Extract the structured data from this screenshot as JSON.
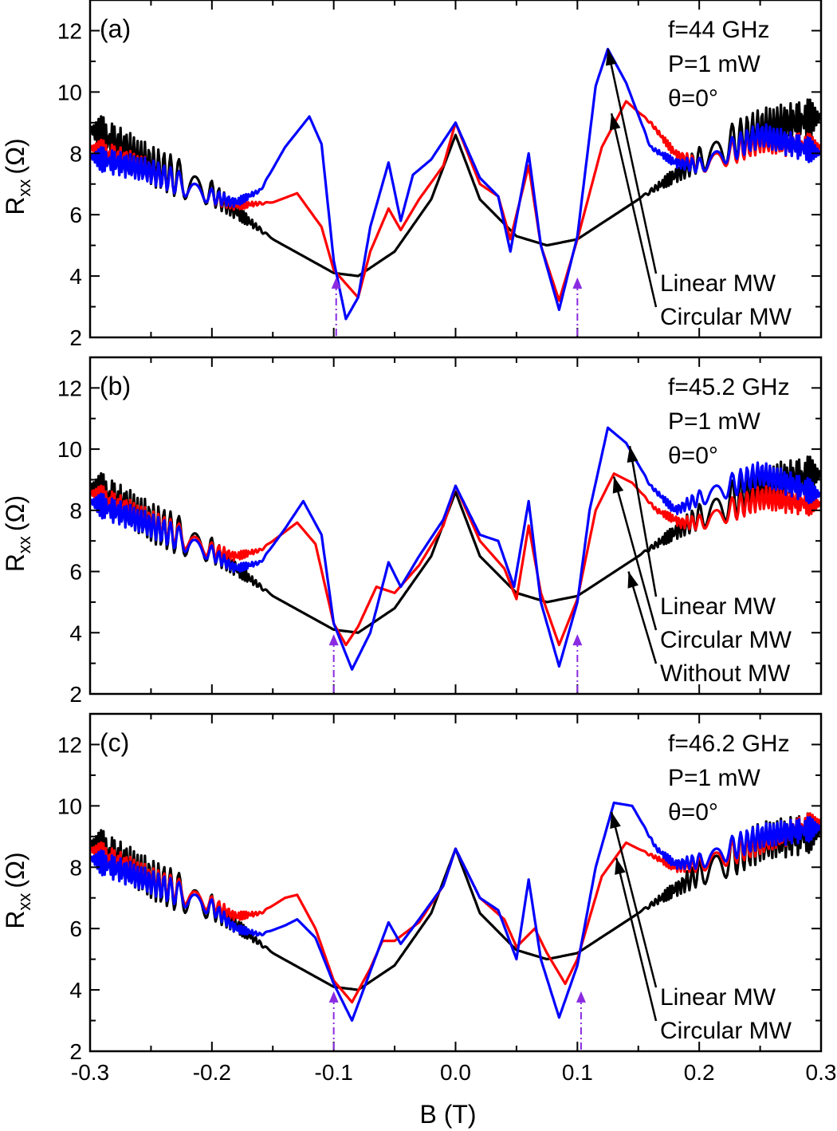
{
  "figure": {
    "xlabel": "B (T)",
    "ylabel_main": "R",
    "ylabel_sub": "xx",
    "ylabel_unit": "(Ω)"
  },
  "colors": {
    "linear": "#0000ff",
    "circular": "#ff0000",
    "without": "#000000",
    "marker": "#8a2be2"
  },
  "chart_data": [
    {
      "type": "line",
      "panel": "(a)",
      "params": {
        "f": "f=44 GHz",
        "P": "P=1 mW",
        "theta": "θ=0°"
      },
      "legend": [
        "Linear MW",
        "Circular MW"
      ],
      "xlim": [
        -0.3,
        0.3
      ],
      "ylim": [
        2,
        13
      ],
      "xticks": [
        -0.3,
        -0.2,
        -0.1,
        0.0,
        0.1,
        0.2,
        0.3
      ],
      "yticks": [
        2,
        4,
        6,
        8,
        10,
        12
      ],
      "markers_B": [
        -0.098,
        0.1
      ],
      "series": [
        {
          "name": "Without MW",
          "color": "#000000",
          "x": [
            -0.3,
            -0.25,
            -0.2,
            -0.15,
            -0.1,
            -0.08,
            -0.05,
            -0.02,
            0,
            0.02,
            0.05,
            0.075,
            0.1,
            0.15,
            0.2,
            0.25,
            0.3
          ],
          "y": [
            8.8,
            7.6,
            6.7,
            5.2,
            4.1,
            4.0,
            4.8,
            6.5,
            8.6,
            6.5,
            5.3,
            5.0,
            5.2,
            6.5,
            7.8,
            8.8,
            9.2
          ],
          "osc": 0.65
        },
        {
          "name": "Circular MW",
          "color": "#ff0000",
          "x": [
            -0.3,
            -0.25,
            -0.2,
            -0.18,
            -0.15,
            -0.13,
            -0.11,
            -0.1,
            -0.08,
            -0.07,
            -0.055,
            -0.045,
            -0.03,
            -0.01,
            0,
            0.02,
            0.035,
            0.045,
            0.06,
            0.07,
            0.085,
            0.1,
            0.12,
            0.14,
            0.16,
            0.18,
            0.2,
            0.25,
            0.3
          ],
          "y": [
            8.2,
            7.4,
            6.6,
            6.3,
            6.4,
            6.7,
            5.6,
            4.2,
            3.3,
            4.8,
            6.2,
            5.5,
            6.5,
            7.6,
            9.0,
            7.0,
            6.6,
            5.2,
            7.6,
            5.0,
            3.2,
            5.2,
            8.2,
            9.7,
            9.0,
            8.0,
            7.6,
            8.4,
            8.2
          ],
          "osc": 0.4
        },
        {
          "name": "Linear MW",
          "color": "#0000ff",
          "x": [
            -0.3,
            -0.25,
            -0.2,
            -0.18,
            -0.16,
            -0.14,
            -0.12,
            -0.11,
            -0.1,
            -0.09,
            -0.08,
            -0.07,
            -0.055,
            -0.045,
            -0.035,
            -0.02,
            0,
            0.02,
            0.035,
            0.045,
            0.06,
            0.07,
            0.085,
            0.1,
            0.115,
            0.125,
            0.14,
            0.16,
            0.18,
            0.2,
            0.25,
            0.3
          ],
          "y": [
            7.9,
            7.4,
            6.6,
            6.4,
            6.8,
            8.2,
            9.2,
            8.3,
            4.5,
            2.6,
            3.3,
            5.6,
            7.7,
            5.8,
            7.3,
            7.8,
            9.0,
            7.2,
            6.6,
            4.8,
            8.0,
            5.0,
            2.9,
            5.3,
            10.2,
            11.4,
            10.3,
            8.2,
            7.7,
            7.6,
            8.6,
            8.0
          ],
          "osc": 0.4
        }
      ],
      "annotations": [
        {
          "text": "Linear MW",
          "target": [
            0.125,
            11.4
          ]
        },
        {
          "text": "Circular MW",
          "target": [
            0.128,
            9.3
          ]
        }
      ]
    },
    {
      "type": "line",
      "panel": "(b)",
      "params": {
        "f": "f=45.2 GHz",
        "P": "P=1 mW",
        "theta": "θ=0°"
      },
      "legend": [
        "Linear MW",
        "Circular MW",
        "Without MW"
      ],
      "xlim": [
        -0.3,
        0.3
      ],
      "ylim": [
        2,
        13
      ],
      "xticks": [
        -0.3,
        -0.2,
        -0.1,
        0.0,
        0.1,
        0.2,
        0.3
      ],
      "yticks": [
        2,
        4,
        6,
        8,
        10,
        12
      ],
      "markers_B": [
        -0.1,
        0.1
      ],
      "series": [
        {
          "name": "Without MW",
          "color": "#000000",
          "x": [
            -0.3,
            -0.25,
            -0.2,
            -0.15,
            -0.1,
            -0.08,
            -0.05,
            -0.02,
            0,
            0.02,
            0.05,
            0.075,
            0.1,
            0.15,
            0.2,
            0.25,
            0.3
          ],
          "y": [
            8.8,
            7.6,
            6.7,
            5.2,
            4.1,
            4.0,
            4.8,
            6.5,
            8.6,
            6.5,
            5.3,
            5.0,
            5.2,
            6.5,
            7.8,
            8.8,
            9.2
          ],
          "osc": 0.65
        },
        {
          "name": "Circular MW",
          "color": "#ff0000",
          "x": [
            -0.3,
            -0.25,
            -0.2,
            -0.18,
            -0.16,
            -0.14,
            -0.13,
            -0.115,
            -0.1,
            -0.09,
            -0.08,
            -0.065,
            -0.05,
            -0.03,
            -0.01,
            0,
            0.02,
            0.04,
            0.05,
            0.06,
            0.07,
            0.085,
            0.1,
            0.115,
            0.13,
            0.145,
            0.165,
            0.185,
            0.2,
            0.25,
            0.3
          ],
          "y": [
            8.6,
            7.6,
            6.7,
            6.5,
            6.7,
            7.3,
            7.6,
            6.9,
            4.3,
            3.6,
            4.2,
            5.5,
            5.3,
            6.2,
            7.5,
            8.8,
            7.0,
            6.1,
            5.1,
            7.5,
            5.3,
            3.6,
            5.1,
            8.0,
            9.2,
            8.9,
            8.0,
            7.6,
            7.6,
            8.4,
            8.2
          ],
          "osc": 0.4
        },
        {
          "name": "Linear MW",
          "color": "#0000ff",
          "x": [
            -0.3,
            -0.25,
            -0.2,
            -0.18,
            -0.16,
            -0.14,
            -0.125,
            -0.11,
            -0.1,
            -0.085,
            -0.07,
            -0.055,
            -0.045,
            -0.03,
            -0.01,
            0,
            0.02,
            0.035,
            0.048,
            0.06,
            0.07,
            0.085,
            0.1,
            0.11,
            0.125,
            0.14,
            0.16,
            0.18,
            0.2,
            0.25,
            0.3
          ],
          "y": [
            8.3,
            7.5,
            6.6,
            6.1,
            6.3,
            7.4,
            8.3,
            7.2,
            4.3,
            2.8,
            4.0,
            6.3,
            5.5,
            6.5,
            7.7,
            8.8,
            7.2,
            7.0,
            5.5,
            8.3,
            5.0,
            2.9,
            5.0,
            8.0,
            10.7,
            10.2,
            8.8,
            8.0,
            8.4,
            9.2,
            8.5
          ],
          "osc": 0.4
        }
      ],
      "annotations": [
        {
          "text": "Linear MW",
          "target": [
            0.143,
            10.1
          ]
        },
        {
          "text": "Circular MW",
          "target": [
            0.13,
            9.1
          ]
        },
        {
          "text": "Without MW",
          "target": [
            0.142,
            6.0
          ]
        }
      ]
    },
    {
      "type": "line",
      "panel": "(c)",
      "params": {
        "f": "f=46.2 GHz",
        "P": "P=1 mW",
        "theta": "θ=0°"
      },
      "legend": [
        "Linear MW",
        "Circular MW"
      ],
      "xlim": [
        -0.3,
        0.3
      ],
      "ylim": [
        2,
        13
      ],
      "xticks": [
        -0.3,
        -0.2,
        -0.1,
        0.0,
        0.1,
        0.2,
        0.3
      ],
      "yticks": [
        2,
        4,
        6,
        8,
        10,
        12
      ],
      "markers_B": [
        -0.1,
        0.103
      ],
      "series": [
        {
          "name": "Without MW",
          "color": "#000000",
          "x": [
            -0.3,
            -0.25,
            -0.2,
            -0.15,
            -0.1,
            -0.08,
            -0.05,
            -0.02,
            0,
            0.02,
            0.05,
            0.075,
            0.1,
            0.15,
            0.2,
            0.25,
            0.3
          ],
          "y": [
            8.8,
            7.6,
            6.7,
            5.2,
            4.1,
            4.0,
            4.8,
            6.5,
            8.6,
            6.5,
            5.3,
            5.0,
            5.2,
            6.5,
            7.8,
            8.8,
            9.2
          ],
          "osc": 0.65
        },
        {
          "name": "Circular MW",
          "color": "#ff0000",
          "x": [
            -0.3,
            -0.25,
            -0.2,
            -0.18,
            -0.16,
            -0.14,
            -0.13,
            -0.115,
            -0.1,
            -0.085,
            -0.07,
            -0.06,
            -0.05,
            -0.03,
            -0.01,
            0,
            0.02,
            0.04,
            0.05,
            0.065,
            0.075,
            0.09,
            0.1,
            0.12,
            0.14,
            0.16,
            0.18,
            0.2,
            0.25,
            0.3
          ],
          "y": [
            8.6,
            7.6,
            6.8,
            6.4,
            6.5,
            7.0,
            7.1,
            6.0,
            4.3,
            3.6,
            4.7,
            5.6,
            5.6,
            6.2,
            7.4,
            8.6,
            7.0,
            6.3,
            5.4,
            6.0,
            5.2,
            4.2,
            5.0,
            7.7,
            8.8,
            8.4,
            8.0,
            8.1,
            8.8,
            9.5
          ],
          "osc": 0.4
        },
        {
          "name": "Linear MW",
          "color": "#0000ff",
          "x": [
            -0.3,
            -0.25,
            -0.2,
            -0.18,
            -0.16,
            -0.14,
            -0.13,
            -0.115,
            -0.1,
            -0.085,
            -0.07,
            -0.055,
            -0.045,
            -0.03,
            -0.01,
            0,
            0.02,
            0.035,
            0.05,
            0.06,
            0.07,
            0.085,
            0.1,
            0.115,
            0.13,
            0.145,
            0.165,
            0.18,
            0.2,
            0.25,
            0.3
          ],
          "y": [
            8.3,
            7.5,
            6.7,
            6.0,
            5.8,
            6.1,
            6.3,
            5.7,
            4.2,
            3.0,
            4.6,
            6.2,
            5.5,
            6.3,
            7.4,
            8.6,
            7.0,
            6.6,
            5.0,
            7.6,
            5.0,
            3.1,
            4.8,
            8.0,
            10.1,
            10.0,
            8.6,
            8.1,
            8.2,
            9.0,
            9.3
          ],
          "osc": 0.4
        }
      ],
      "annotations": [
        {
          "text": "Linear MW",
          "target": [
            0.128,
            9.8
          ]
        },
        {
          "text": "Circular MW",
          "target": [
            0.132,
            8.3
          ]
        }
      ]
    }
  ]
}
